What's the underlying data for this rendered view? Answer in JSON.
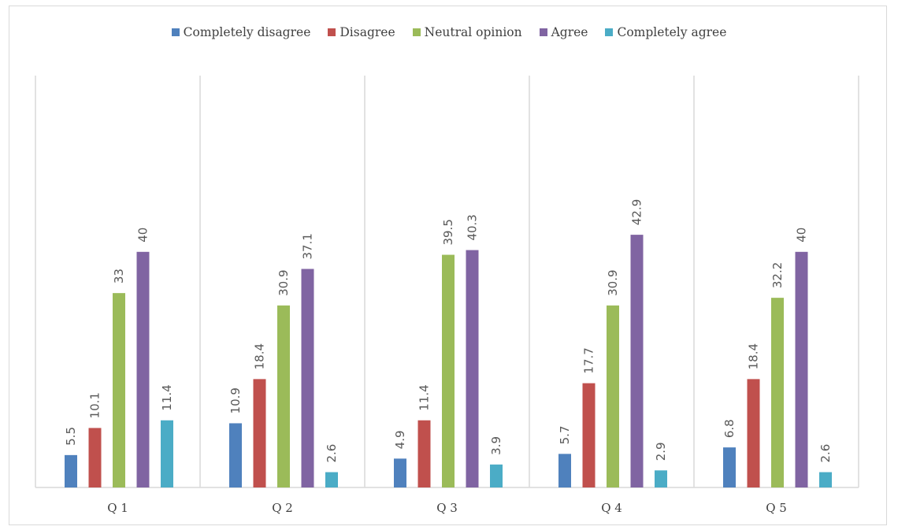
{
  "chart_data": {
    "type": "bar",
    "categories": [
      "Q 1",
      "Q 2",
      "Q 3",
      "Q 4",
      "Q 5"
    ],
    "series": [
      {
        "name": "Completely disagree",
        "color": "#4f81bd",
        "values": [
          5.5,
          10.9,
          4.9,
          5.7,
          6.8
        ]
      },
      {
        "name": "Disagree",
        "color": "#c0504d",
        "values": [
          10.1,
          18.4,
          11.4,
          17.7,
          18.4
        ]
      },
      {
        "name": "Neutral opinion",
        "color": "#9bbb59",
        "values": [
          33,
          30.9,
          39.5,
          30.9,
          32.2
        ]
      },
      {
        "name": "Agree",
        "color": "#8064a2",
        "values": [
          40,
          37.1,
          40.3,
          42.9,
          40
        ]
      },
      {
        "name": "Completely agree",
        "color": "#4bacc6",
        "values": [
          11.4,
          2.6,
          3.9,
          2.9,
          2.6
        ]
      }
    ],
    "ylim": [
      0,
      50
    ],
    "legend_position": "top",
    "grid": false,
    "category_separators": true,
    "data_labels": "vertical-above-bars"
  }
}
